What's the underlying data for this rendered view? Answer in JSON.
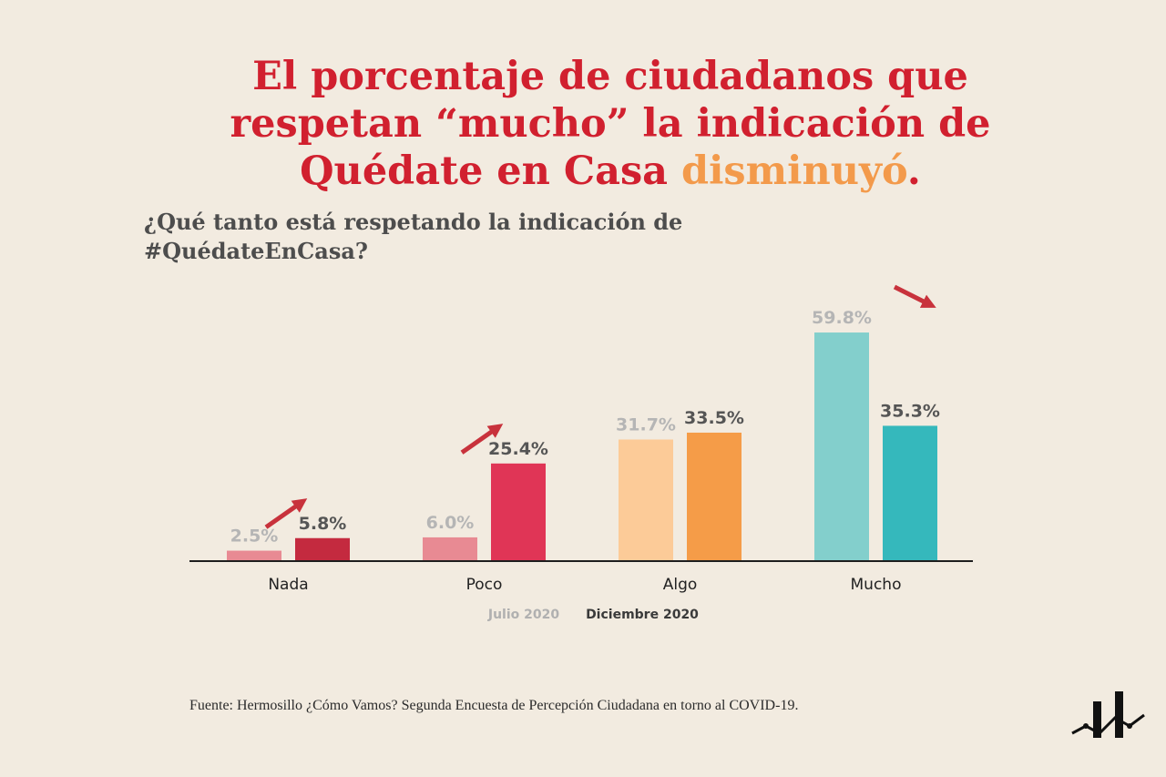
{
  "title": {
    "part1": "El porcentaje de ciudadanos que respetan “mucho” la indicación de Quédate en Casa ",
    "accent": "disminuyó",
    "end": "."
  },
  "subtitle": "¿Qué tanto está respetando la indicación de #QuédateEnCasa?",
  "source": "Fuente: Hermosillo ¿Cómo Vamos? Segunda Encuesta de Percepción Ciudadana en torno al COVID-19.",
  "colors": {
    "background": "#f2ebe0",
    "title": "#d1202f",
    "title_accent": "#f39a4b",
    "arrow": "#c8323c",
    "legend_julio": "#b0b0b0",
    "legend_diciembre": "#3a3a3a",
    "label_julio": "#b5b5b5",
    "label_diciembre": "#555555"
  },
  "chart_data": {
    "type": "bar",
    "categories": [
      "Nada",
      "Poco",
      "Algo",
      "Mucho"
    ],
    "series": [
      {
        "name": "Julio 2020",
        "values": [
          2.5,
          6.0,
          31.7,
          59.8
        ],
        "labels": [
          "2.5%",
          "6.0%",
          "31.7%",
          "59.8%"
        ],
        "colors": [
          "#e88a93",
          "#e88a93",
          "#fccb98",
          "#83cfcc"
        ]
      },
      {
        "name": "Diciembre 2020",
        "values": [
          5.8,
          25.4,
          33.5,
          35.3
        ],
        "labels": [
          "5.8%",
          "25.4%",
          "33.5%",
          "35.3%"
        ],
        "colors": [
          "#c42a3f",
          "#e03556",
          "#f59c48",
          "#35b8bc"
        ]
      }
    ],
    "trend_arrows": [
      "up",
      "up",
      "none",
      "down"
    ],
    "legend_position": "bottom-center",
    "grid": false
  }
}
